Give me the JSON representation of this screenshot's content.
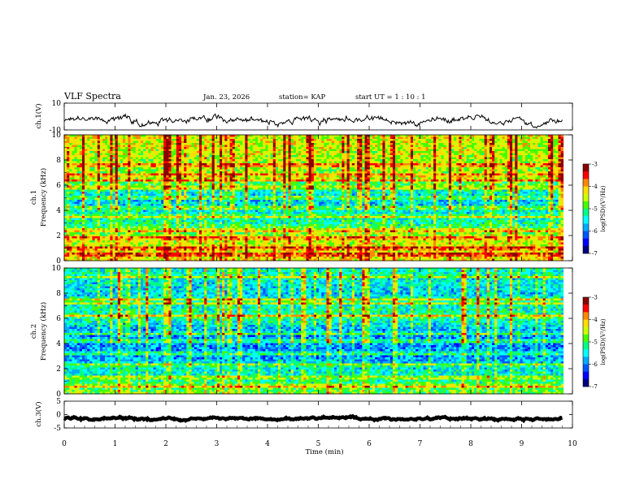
{
  "header": {
    "title": "VLF Spectra",
    "date": "Jan. 23, 2026",
    "station": "station= KAP",
    "start": "start  UT =   1 : 10 : 1"
  },
  "colors": {
    "colormap": [
      "#00007f",
      "#0000ff",
      "#0055ff",
      "#00aaff",
      "#00ffff",
      "#00ff88",
      "#44ff00",
      "#ccff00",
      "#ffdd00",
      "#ff8800",
      "#ff0000",
      "#8b0000"
    ]
  },
  "chart_data": [
    {
      "type": "line",
      "name": "ch1-waveform",
      "ylabel": "ch.1(V)",
      "ylim": [
        -10,
        10
      ],
      "yticks": [
        "10",
        "-10"
      ],
      "series": [
        {
          "name": "ch.1 amplitude",
          "x_range_min": [
            0,
            9.8
          ],
          "mean_V": -3,
          "noise_V": 3
        }
      ]
    },
    {
      "type": "heatmap",
      "name": "ch1-spectrogram",
      "ylabel": "ch.1\nFrequency (kHz)",
      "ylim": [
        0,
        10
      ],
      "yticks": [
        "0",
        "2",
        "4",
        "6",
        "8",
        "10"
      ],
      "colorbar": {
        "label": "log(PSD)(V²/Hz)",
        "range": [
          -7,
          -3
        ],
        "ticks": [
          "-3",
          "-4",
          "-5",
          "-6",
          "-7"
        ]
      },
      "bands_khz": [
        0.5,
        1.0,
        1.8,
        2.4,
        3.5,
        4.2,
        5.0,
        5.8,
        6.4,
        6.8,
        7.6
      ],
      "base_level": [
        {
          "f": 0,
          "v": -4.2
        },
        {
          "f": 2,
          "v": -4.6
        },
        {
          "f": 3,
          "v": -5.3
        },
        {
          "f": 5,
          "v": -5.7
        },
        {
          "f": 6,
          "v": -5.0
        },
        {
          "f": 7,
          "v": -4.6
        },
        {
          "f": 10,
          "v": -4.4
        }
      ]
    },
    {
      "type": "heatmap",
      "name": "ch2-spectrogram",
      "ylabel": "ch.2\nFrequency (kHz)",
      "ylim": [
        0,
        10
      ],
      "yticks": [
        "0",
        "2",
        "4",
        "6",
        "8",
        "10"
      ],
      "colorbar": {
        "label": "log(PSD)(V²/Hz)",
        "range": [
          -7,
          -3
        ],
        "ticks": [
          "-3",
          "-4",
          "-5",
          "-6",
          "-7"
        ]
      },
      "bands_khz": [
        0.6,
        1.3,
        2.3,
        3.2,
        4.2,
        4.8,
        6.2,
        7.2,
        7.5,
        9.3
      ],
      "base_level": [
        {
          "f": 0,
          "v": -4.8
        },
        {
          "f": 1,
          "v": -5.2
        },
        {
          "f": 3,
          "v": -5.9
        },
        {
          "f": 5,
          "v": -5.9
        },
        {
          "f": 6,
          "v": -5.2
        },
        {
          "f": 8,
          "v": -5.6
        },
        {
          "f": 10,
          "v": -5.4
        }
      ]
    },
    {
      "type": "line",
      "name": "ch3-waveform",
      "ylabel": "ch.3(V)",
      "ylim": [
        -5,
        5
      ],
      "yticks": [
        "5",
        "0",
        "-5"
      ],
      "series": [
        {
          "name": "ch.3 amplitude",
          "x_range_min": [
            0,
            9.8
          ],
          "mean_V": -1.5,
          "noise_V": 0.5
        }
      ]
    }
  ],
  "xaxis": {
    "label": "Time  (min)",
    "range_min": [
      0,
      10
    ],
    "ticks": [
      "0",
      "1",
      "2",
      "3",
      "4",
      "5",
      "6",
      "7",
      "8",
      "9",
      "10"
    ]
  }
}
